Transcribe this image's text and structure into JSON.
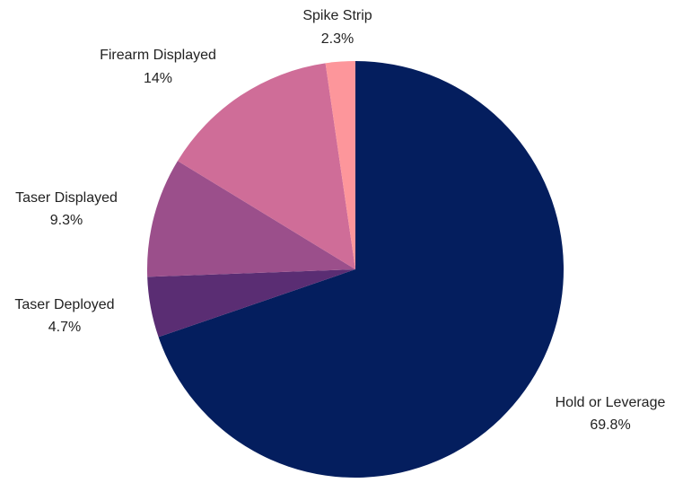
{
  "chart_data": {
    "type": "pie",
    "title": "",
    "slices": [
      {
        "label": "Hold or Leverage",
        "value_text": "69.8%",
        "value": 69.8,
        "color": "#041e5e"
      },
      {
        "label": "Taser Deployed",
        "value_text": "4.7%",
        "value": 4.7,
        "color": "#5a2d73"
      },
      {
        "label": "Taser Displayed",
        "value_text": "9.3%",
        "value": 9.3,
        "color": "#9b4f8b"
      },
      {
        "label": "Firearm Displayed",
        "value_text": "14%",
        "value": 14,
        "color": "#cf6d98"
      },
      {
        "label": "Spike Strip",
        "value_text": "2.3%",
        "value": 2.3,
        "color": "#fd969b"
      }
    ],
    "start": "12 o'clock",
    "direction": "clockwise",
    "legend": "none",
    "labels": "outside, name above value"
  }
}
